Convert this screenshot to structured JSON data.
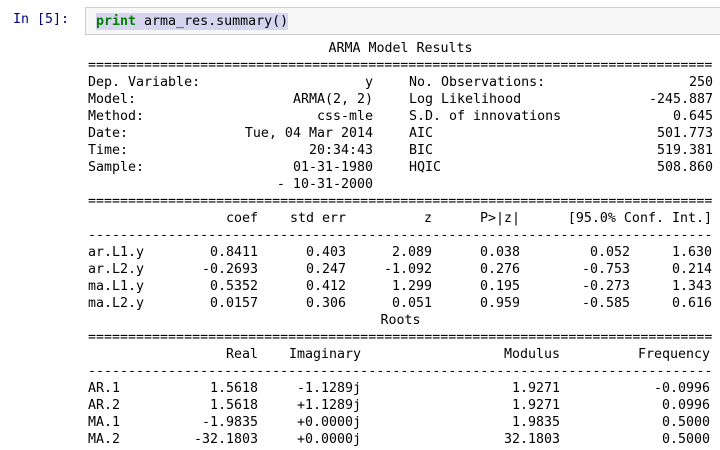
{
  "cell": {
    "prompt": "In [5]:",
    "code": {
      "keyword": "print",
      "rest": " arma_res.summary()"
    }
  },
  "output": {
    "title": "ARMA Model Results",
    "sep_heavy": "==============================================================================",
    "sep_light": "------------------------------------------------------------------------------",
    "info_rows": [
      [
        "Dep. Variable:",
        "y",
        "No. Observations:",
        "250"
      ],
      [
        "Model:",
        "ARMA(2, 2)",
        "Log Likelihood",
        "-245.887"
      ],
      [
        "Method:",
        "css-mle",
        "S.D. of innovations",
        "0.645"
      ],
      [
        "Date:",
        "Tue, 04 Mar 2014",
        "AIC",
        "501.773"
      ],
      [
        "Time:",
        "20:34:43",
        "BIC",
        "519.381"
      ],
      [
        "Sample:",
        "01-31-1980",
        "HQIC",
        "508.860"
      ],
      [
        "",
        "- 10-31-2000",
        "",
        ""
      ]
    ],
    "coef_table": {
      "headers": [
        "",
        "coef",
        "std err",
        "z",
        "P>|z|",
        "[95.0% Conf. Int.]"
      ],
      "rows": [
        [
          "ar.L1.y",
          "0.8411",
          "0.403",
          "2.089",
          "0.038",
          "0.052",
          "1.630"
        ],
        [
          "ar.L2.y",
          "-0.2693",
          "0.247",
          "-1.092",
          "0.276",
          "-0.753",
          "0.214"
        ],
        [
          "ma.L1.y",
          "0.5352",
          "0.412",
          "1.299",
          "0.195",
          "-0.273",
          "1.343"
        ],
        [
          "ma.L2.y",
          "0.0157",
          "0.306",
          "0.051",
          "0.959",
          "-0.585",
          "0.616"
        ]
      ]
    },
    "roots": {
      "title": "Roots",
      "headers": [
        "",
        "Real",
        "Imaginary",
        "Modulus",
        "Frequency"
      ],
      "rows": [
        [
          "AR.1",
          "1.5618",
          "-1.1289j",
          "1.9271",
          "-0.0996"
        ],
        [
          "AR.2",
          "1.5618",
          "+1.1289j",
          "1.9271",
          "0.0996"
        ],
        [
          "MA.1",
          "-1.9835",
          "+0.0000j",
          "1.9835",
          "0.5000"
        ],
        [
          "MA.2",
          "-32.1803",
          "+0.0000j",
          "32.1803",
          "0.5000"
        ]
      ]
    }
  },
  "colors": {
    "prompt_blue": "#000080",
    "keyword_green": "#008000",
    "selection_highlight": "#d7d4f0",
    "input_background": "#f7f7f7",
    "input_border": "#cfcfcf"
  }
}
